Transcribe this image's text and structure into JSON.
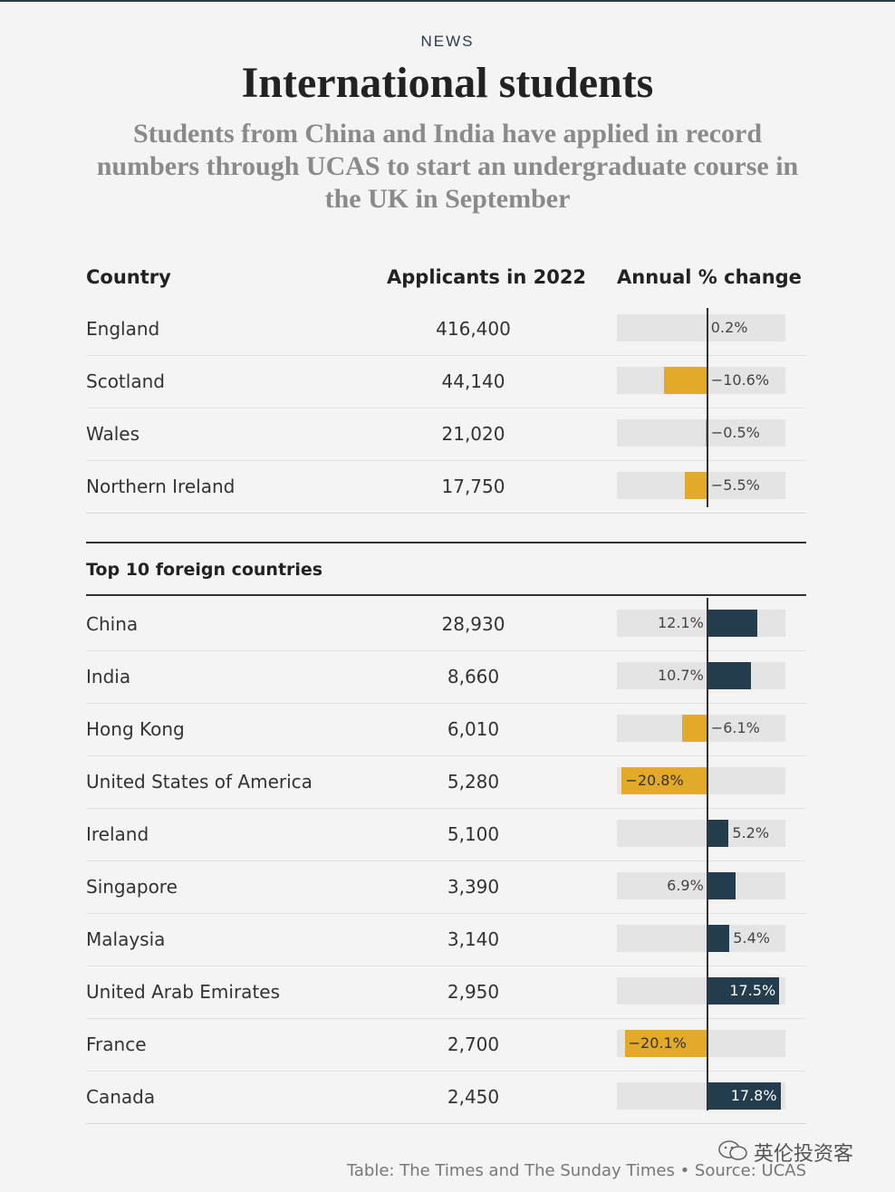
{
  "header": {
    "kicker": "NEWS",
    "title": "International students",
    "subtitle": "Students from China and India have applied in record numbers through UCAS to start an undergraduate course in the UK in September"
  },
  "columns": {
    "country": "Country",
    "applicants": "Applicants in 2022",
    "change": "Annual % change"
  },
  "section_heading": "Top 10 foreign countries",
  "footer": {
    "source": "Table: The Times and The Sunday Times • Source: UCAS",
    "watermark": "英伦投资客"
  },
  "colors": {
    "positive": "#243d4e",
    "negative": "#e3a929",
    "track": "#e4e4e4"
  },
  "chart_data": {
    "type": "table",
    "columns": [
      "Country",
      "Applicants in 2022",
      "Annual % change"
    ],
    "bar_scale_range": [
      -22,
      19
    ],
    "groups": [
      {
        "name": "",
        "rows": [
          {
            "country": "England",
            "applicants": "416,400",
            "change": 0.2,
            "change_label": "0.2%"
          },
          {
            "country": "Scotland",
            "applicants": "44,140",
            "change": -10.6,
            "change_label": "−10.6%"
          },
          {
            "country": "Wales",
            "applicants": "21,020",
            "change": -0.5,
            "change_label": "−0.5%"
          },
          {
            "country": "Northern Ireland",
            "applicants": "17,750",
            "change": -5.5,
            "change_label": "−5.5%"
          }
        ]
      },
      {
        "name": "Top 10 foreign countries",
        "rows": [
          {
            "country": "China",
            "applicants": "28,930",
            "change": 12.1,
            "change_label": "12.1%"
          },
          {
            "country": "India",
            "applicants": "8,660",
            "change": 10.7,
            "change_label": "10.7%"
          },
          {
            "country": "Hong Kong",
            "applicants": "6,010",
            "change": -6.1,
            "change_label": "−6.1%"
          },
          {
            "country": "United States of America",
            "applicants": "5,280",
            "change": -20.8,
            "change_label": "−20.8%"
          },
          {
            "country": "Ireland",
            "applicants": "5,100",
            "change": 5.2,
            "change_label": "5.2%"
          },
          {
            "country": "Singapore",
            "applicants": "3,390",
            "change": 6.9,
            "change_label": "6.9%"
          },
          {
            "country": "Malaysia",
            "applicants": "3,140",
            "change": 5.4,
            "change_label": "5.4%"
          },
          {
            "country": "United Arab Emirates",
            "applicants": "2,950",
            "change": 17.5,
            "change_label": "17.5%"
          },
          {
            "country": "France",
            "applicants": "2,700",
            "change": -20.1,
            "change_label": "−20.1%"
          },
          {
            "country": "Canada",
            "applicants": "2,450",
            "change": 17.8,
            "change_label": "17.8%"
          }
        ]
      }
    ]
  }
}
